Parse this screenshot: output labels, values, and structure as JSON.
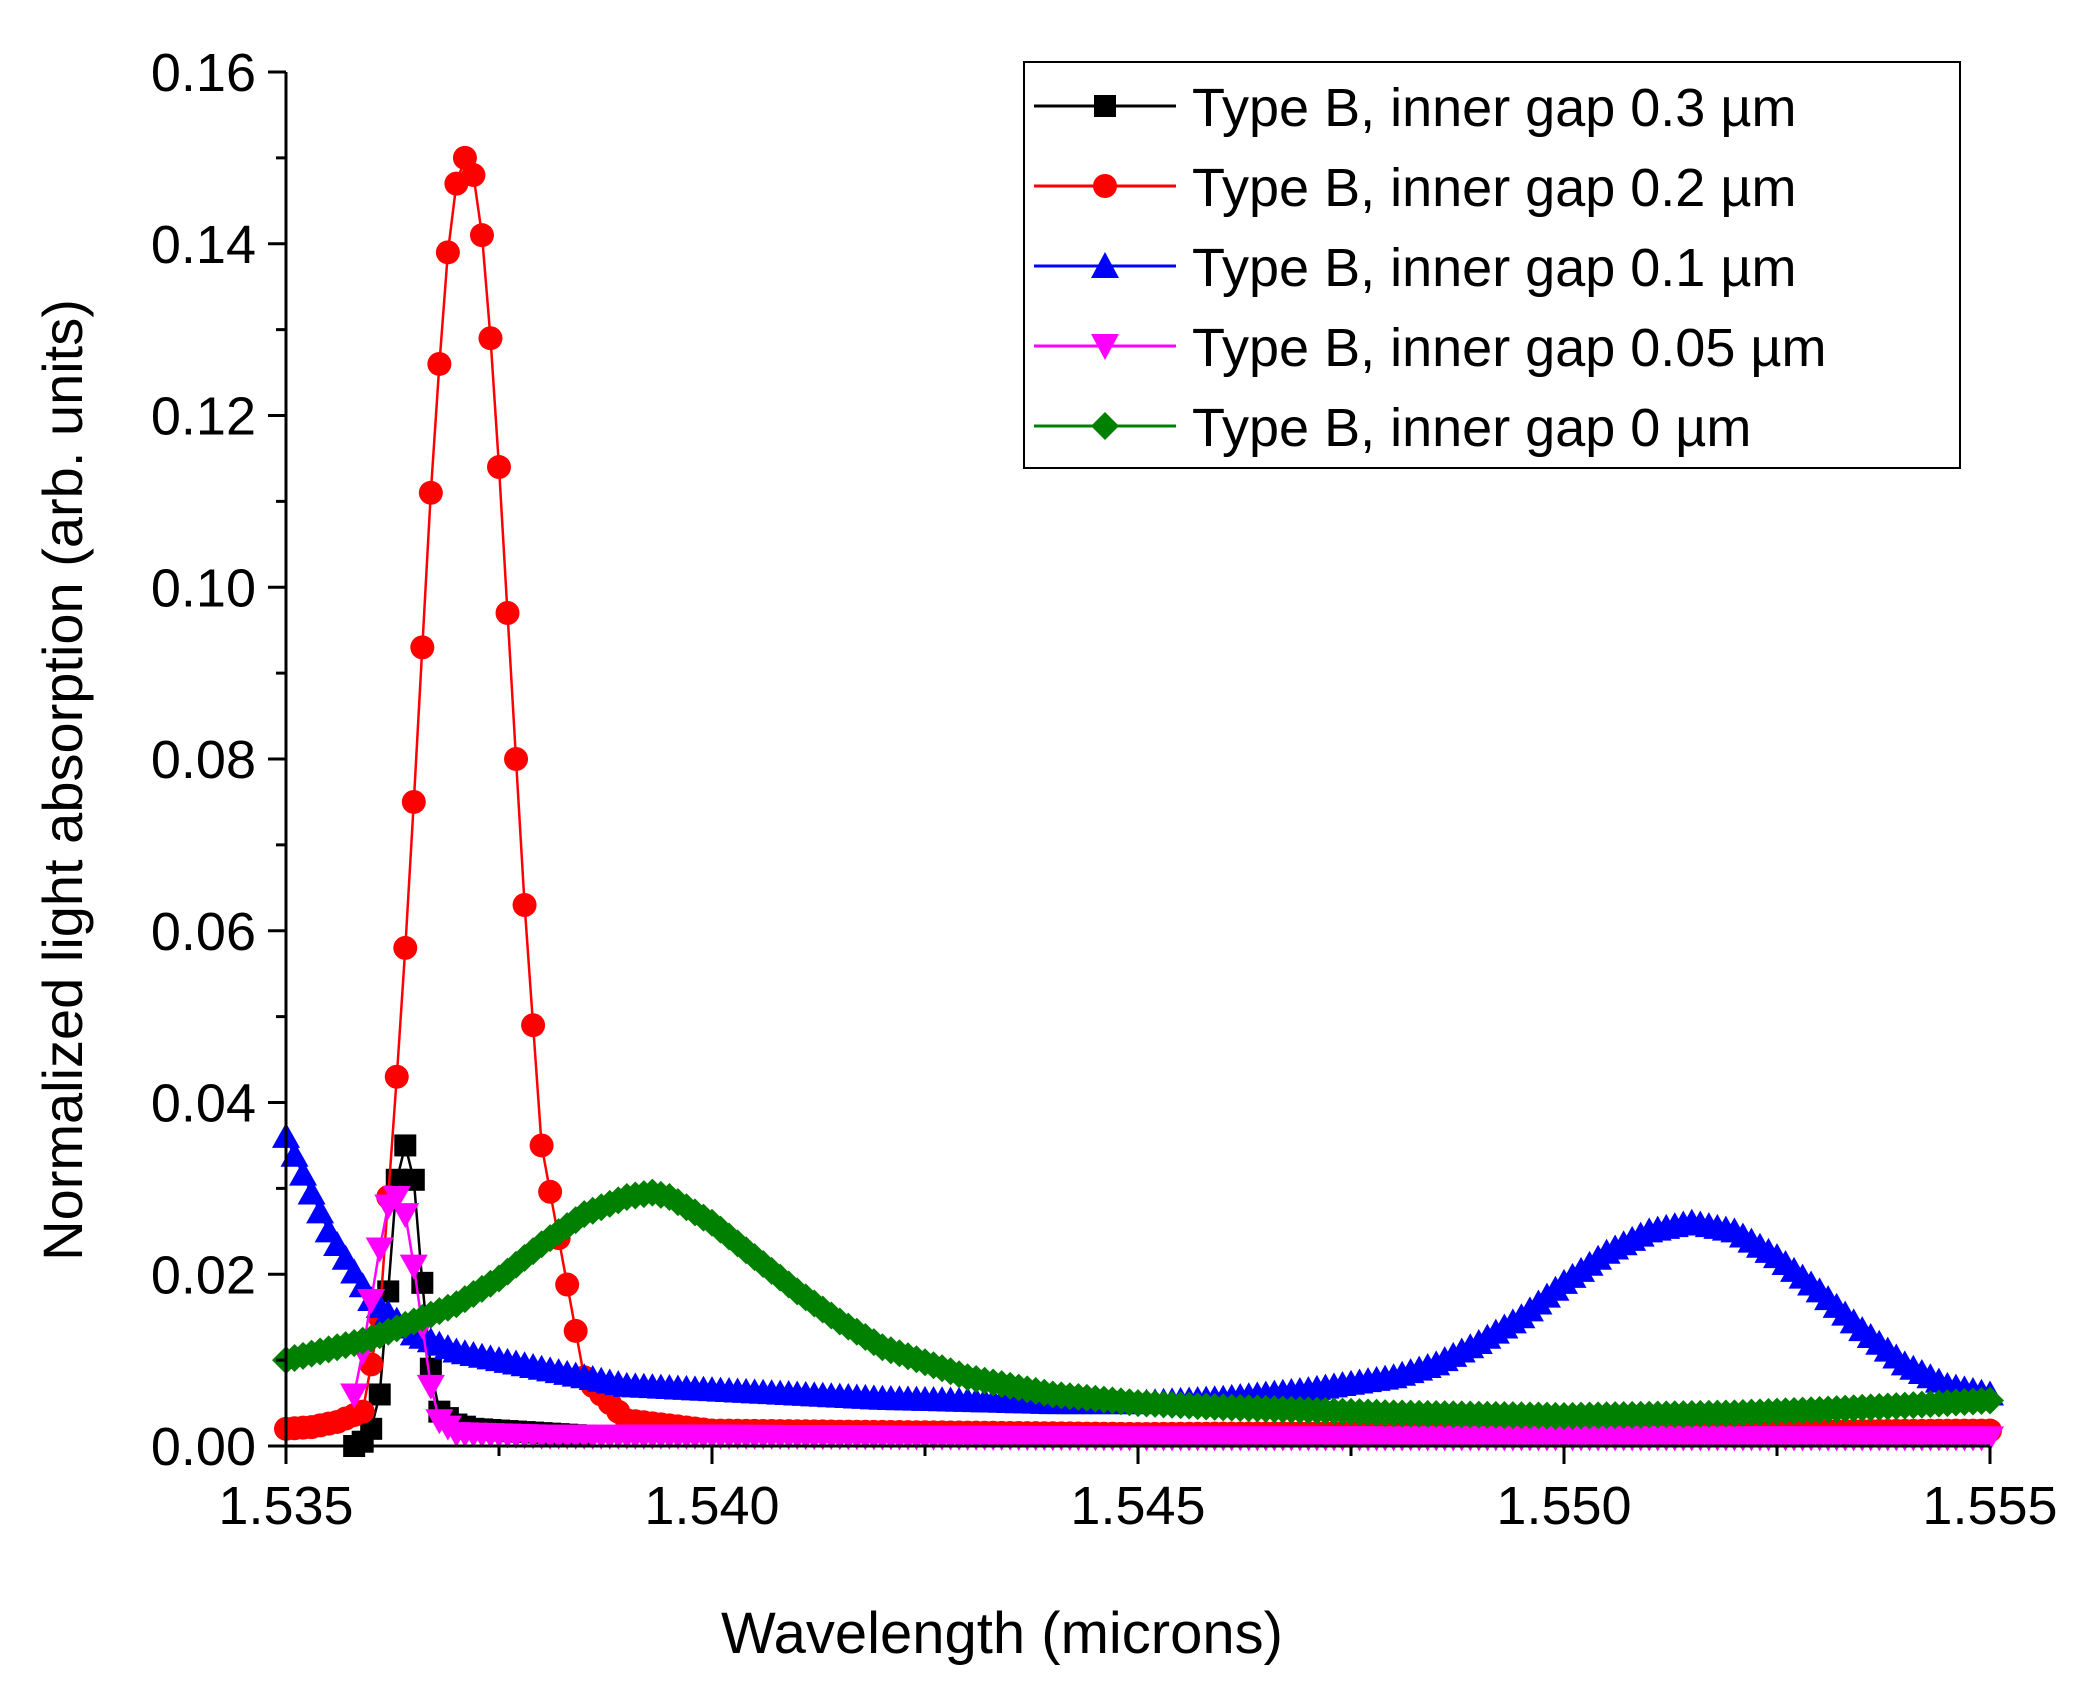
{
  "chart_data": {
    "type": "line",
    "title": "",
    "xlabel": "Wavelength (microns)",
    "ylabel": "Normalized light absorption (arb. units)",
    "xlim": [
      1.535,
      1.555
    ],
    "ylim": [
      0.0,
      0.16
    ],
    "xticks": [
      "1.535",
      "1.540",
      "1.545",
      "1.550",
      "1.555"
    ],
    "yticks": [
      "0.00",
      "0.02",
      "0.04",
      "0.06",
      "0.08",
      "0.10",
      "0.12",
      "0.14",
      "0.16"
    ],
    "grid": false,
    "legend_position": "top-right",
    "series": [
      {
        "name": "Type B, inner gap 0.3 µm",
        "color": "#000000",
        "marker": "square",
        "x": [
          1.5358,
          1.5359,
          1.536,
          1.5361,
          1.5362,
          1.5363,
          1.5364,
          1.5365,
          1.5366,
          1.5367,
          1.5368,
          1.537,
          1.5372,
          1.5375,
          1.538,
          1.5385
        ],
        "y": [
          0.0,
          0.0005,
          0.002,
          0.006,
          0.018,
          0.031,
          0.035,
          0.031,
          0.019,
          0.009,
          0.004,
          0.0025,
          0.002,
          0.0018,
          0.0015,
          0.0012
        ]
      },
      {
        "name": "Type B, inner gap 0.2 µm",
        "color": "#ff0000",
        "marker": "circle",
        "x": [
          1.535,
          1.5353,
          1.5356,
          1.5359,
          1.5361,
          1.5362,
          1.5363,
          1.5364,
          1.5365,
          1.5366,
          1.5367,
          1.5368,
          1.5369,
          1.537,
          1.5371,
          1.5372,
          1.5373,
          1.5374,
          1.5375,
          1.5376,
          1.5378,
          1.538,
          1.5385,
          1.539,
          1.54,
          1.545,
          1.55,
          1.555
        ],
        "y": [
          0.002,
          0.0022,
          0.0028,
          0.004,
          0.015,
          0.029,
          0.043,
          0.058,
          0.075,
          0.093,
          0.111,
          0.126,
          0.139,
          0.147,
          0.15,
          0.148,
          0.141,
          0.129,
          0.114,
          0.097,
          0.063,
          0.035,
          0.008,
          0.003,
          0.0018,
          0.0014,
          0.0016,
          0.0018
        ]
      },
      {
        "name": "Type B, inner gap 0.1 µm",
        "color": "#0000ff",
        "marker": "triangle-up",
        "x": [
          1.535,
          1.5355,
          1.536,
          1.5365,
          1.537,
          1.538,
          1.539,
          1.54,
          1.542,
          1.544,
          1.545,
          1.546,
          1.547,
          1.548,
          1.5485,
          1.549,
          1.5495,
          1.55,
          1.5505,
          1.551,
          1.5515,
          1.552,
          1.5525,
          1.553,
          1.5535,
          1.554,
          1.5545,
          1.555
        ],
        "y": [
          0.036,
          0.025,
          0.017,
          0.013,
          0.011,
          0.009,
          0.007,
          0.0065,
          0.0055,
          0.005,
          0.005,
          0.0055,
          0.0065,
          0.008,
          0.0095,
          0.012,
          0.015,
          0.019,
          0.0225,
          0.025,
          0.026,
          0.025,
          0.022,
          0.018,
          0.0135,
          0.0095,
          0.007,
          0.006
        ]
      },
      {
        "name": "Type B, inner gap 0.05 µm",
        "color": "#ff00ff",
        "marker": "triangle-down",
        "x": [
          1.5358,
          1.5359,
          1.536,
          1.5361,
          1.5362,
          1.5363,
          1.5364,
          1.5365,
          1.5366,
          1.5367,
          1.5368,
          1.537,
          1.538,
          1.54,
          1.545,
          1.55,
          1.555
        ],
        "y": [
          0.006,
          0.011,
          0.017,
          0.023,
          0.028,
          0.029,
          0.027,
          0.021,
          0.014,
          0.007,
          0.003,
          0.0015,
          0.0012,
          0.0012,
          0.001,
          0.001,
          0.001
        ]
      },
      {
        "name": "Type B, inner gap 0 µm",
        "color": "#008000",
        "marker": "diamond",
        "x": [
          1.535,
          1.536,
          1.537,
          1.5375,
          1.538,
          1.5385,
          1.539,
          1.5393,
          1.5395,
          1.54,
          1.5405,
          1.541,
          1.5415,
          1.542,
          1.543,
          1.544,
          1.545,
          1.546,
          1.548,
          1.55,
          1.552,
          1.553,
          1.554,
          1.555
        ],
        "y": [
          0.01,
          0.0125,
          0.0165,
          0.0195,
          0.0235,
          0.027,
          0.029,
          0.0295,
          0.029,
          0.026,
          0.022,
          0.018,
          0.0145,
          0.0115,
          0.008,
          0.006,
          0.005,
          0.0045,
          0.0038,
          0.0035,
          0.0038,
          0.0042,
          0.0047,
          0.0053
        ]
      }
    ]
  }
}
